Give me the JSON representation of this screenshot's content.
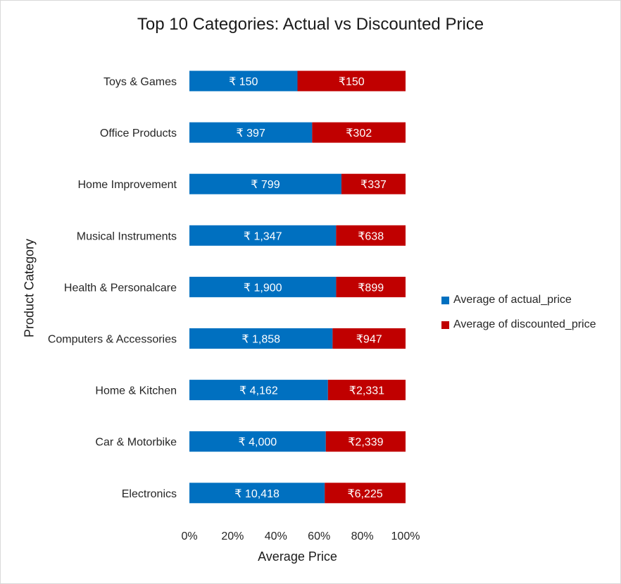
{
  "chart_data": {
    "type": "bar",
    "orientation": "horizontal",
    "stacked": "100%",
    "title": "Top 10 Categories: Actual vs Discounted Price",
    "xlabel": "Average Price",
    "ylabel": "Product Category",
    "xlim": [
      0,
      100
    ],
    "x_ticks": [
      "0%",
      "20%",
      "40%",
      "60%",
      "80%",
      "100%"
    ],
    "grid": false,
    "legend_position": "right",
    "currency_symbol": "₹",
    "categories": [
      "Toys & Games",
      "Office Products",
      "Home Improvement",
      "Musical Instruments",
      "Health & Personalcare",
      "Computers & Accessories",
      "Home & Kitchen",
      "Car & Motorbike",
      "Electronics"
    ],
    "series": [
      {
        "name": "Average of actual_price",
        "color": "#0070c0",
        "values": [
          150,
          397,
          799,
          1347,
          1900,
          1858,
          4162,
          4000,
          10418
        ],
        "labels": [
          "₹ 150",
          "₹ 397",
          "₹ 799",
          "₹ 1,347",
          "₹ 1,900",
          "₹ 1,858",
          "₹ 4,162",
          "₹ 4,000",
          "₹ 10,418"
        ]
      },
      {
        "name": "Average of discounted_price",
        "color": "#c00000",
        "values": [
          150,
          302,
          337,
          638,
          899,
          947,
          2331,
          2339,
          6225
        ],
        "labels": [
          "₹150",
          "₹302",
          "₹337",
          "₹638",
          "₹899",
          "₹947",
          "₹2,331",
          "₹2,339",
          "₹6,225"
        ]
      }
    ]
  }
}
